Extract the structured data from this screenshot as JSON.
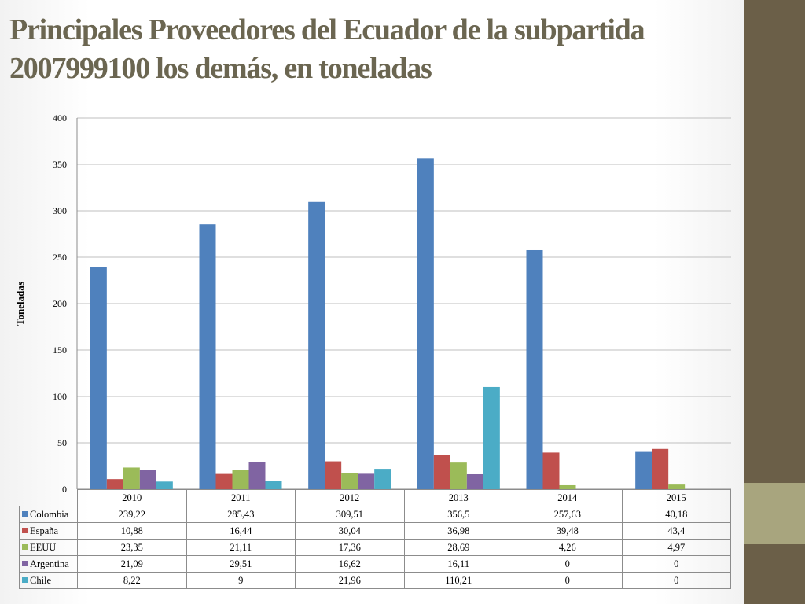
{
  "title": "Principales Proveedores del Ecuador de la subpartida  2007999100 los demás, en toneladas",
  "colors": {
    "sidebar_dark": "#6b5f48",
    "sidebar_light": "#a8a57e",
    "title": "#6b6651",
    "grid": "#bfbfbf"
  },
  "chart_data": {
    "type": "bar",
    "title": "",
    "xlabel": "",
    "ylabel": "Toneladas",
    "ylim": [
      0,
      400
    ],
    "yticks": [
      0,
      50,
      100,
      150,
      200,
      250,
      300,
      350,
      400
    ],
    "grid": true,
    "legend": "data-table",
    "categories": [
      "2010",
      "2011",
      "2012",
      "2013",
      "2014",
      "2015"
    ],
    "series": [
      {
        "name": "Colombia",
        "color": "#4f81bd",
        "values": [
          239.22,
          285.43,
          309.51,
          356.5,
          257.63,
          40.18
        ],
        "labels": [
          "239,22",
          "285,43",
          "309,51",
          "356,5",
          "257,63",
          "40,18"
        ]
      },
      {
        "name": "España",
        "color": "#c0504d",
        "values": [
          10.88,
          16.44,
          30.04,
          36.98,
          39.48,
          43.4
        ],
        "labels": [
          "10,88",
          "16,44",
          "30,04",
          "36,98",
          "39,48",
          "43,4"
        ]
      },
      {
        "name": "EEUU",
        "color": "#9bbb59",
        "values": [
          23.35,
          21.11,
          17.36,
          28.69,
          4.26,
          4.97
        ],
        "labels": [
          "23,35",
          "21,11",
          "17,36",
          "28,69",
          "4,26",
          "4,97"
        ]
      },
      {
        "name": "Argentina",
        "color": "#8064a2",
        "values": [
          21.09,
          29.51,
          16.62,
          16.11,
          0,
          0
        ],
        "labels": [
          "21,09",
          "29,51",
          "16,62",
          "16,11",
          "0",
          "0"
        ]
      },
      {
        "name": "Chile",
        "color": "#4bacc6",
        "values": [
          8.22,
          9,
          21.96,
          110.21,
          0,
          0
        ],
        "labels": [
          "8,22",
          "9",
          "21,96",
          "110,21",
          "0",
          "0"
        ]
      }
    ]
  }
}
